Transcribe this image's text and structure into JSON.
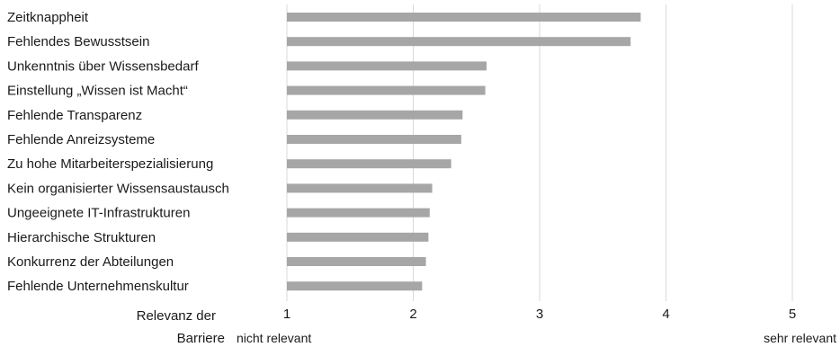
{
  "chart_data": {
    "type": "bar",
    "orientation": "horizontal",
    "categories": [
      "Zeitknappheit",
      "Fehlendes Bewusstsein",
      "Unkenntnis über Wissensbedarf",
      "Einstellung „Wissen ist Macht“",
      "Fehlende Transparenz",
      "Fehlende Anreizsysteme",
      "Zu hohe Mitarbeiterspezialisierung",
      "Kein organisierter Wissensaustausch",
      "Ungeeignete IT-Infrastrukturen",
      "Hierarchische Strukturen",
      "Konkurrenz der Abteilungen",
      "Fehlende Unternehmenskultur"
    ],
    "values": [
      3.8,
      3.72,
      2.58,
      2.57,
      2.39,
      2.38,
      2.3,
      2.15,
      2.13,
      2.12,
      2.1,
      2.07
    ],
    "xlim": [
      1,
      5
    ],
    "xticks": [
      1,
      2,
      3,
      4,
      5
    ],
    "xlabel": "Relevanz der Barriere",
    "xlabel_lines": [
      "Relevanz der",
      "Barriere"
    ],
    "axis_min_label": "nicht relevant",
    "axis_max_label": "sehr relevant",
    "grid": "vertical",
    "bar_color": "#a6a6a6",
    "grid_color": "#d9d9d9",
    "legend": "none"
  }
}
